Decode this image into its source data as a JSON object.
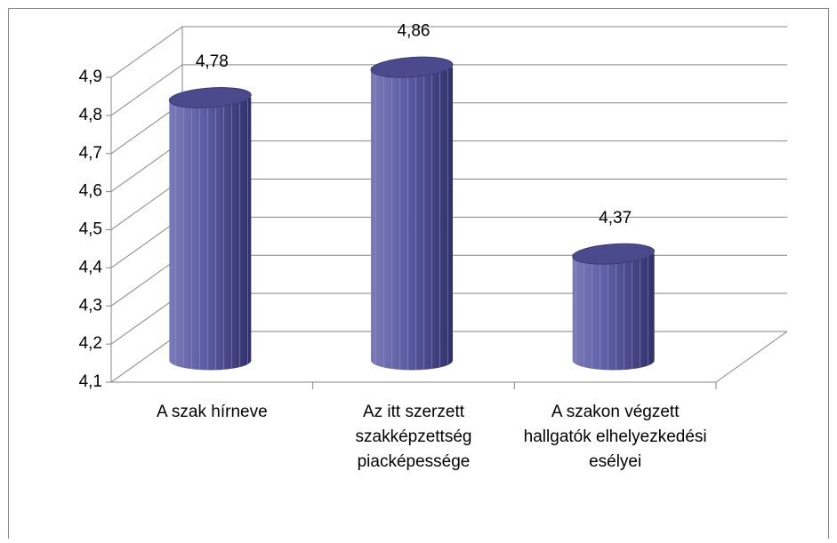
{
  "chart_data": {
    "type": "bar3d",
    "categories": [
      "A szak hírneve",
      "Az itt szerzett szakképzettség piacképessége",
      "A szakon végzett hallgatók elhelyezkedési esélyei"
    ],
    "values": [
      4.78,
      4.86,
      4.37
    ],
    "value_labels": [
      "4,78",
      "4,86",
      "4,37"
    ],
    "color": "#5b5ba3",
    "ylim": [
      4.1,
      4.9
    ],
    "yticks": [
      {
        "value": 4.1,
        "label": "4,1"
      },
      {
        "value": 4.2,
        "label": "4,2"
      },
      {
        "value": 4.3,
        "label": "4,3"
      },
      {
        "value": 4.4,
        "label": "4,4"
      },
      {
        "value": 4.5,
        "label": "4,5"
      },
      {
        "value": 4.6,
        "label": "4,6"
      },
      {
        "value": 4.7,
        "label": "4,7"
      },
      {
        "value": 4.8,
        "label": "4,8"
      },
      {
        "value": 4.9,
        "label": "4,9"
      }
    ],
    "grid": true
  }
}
